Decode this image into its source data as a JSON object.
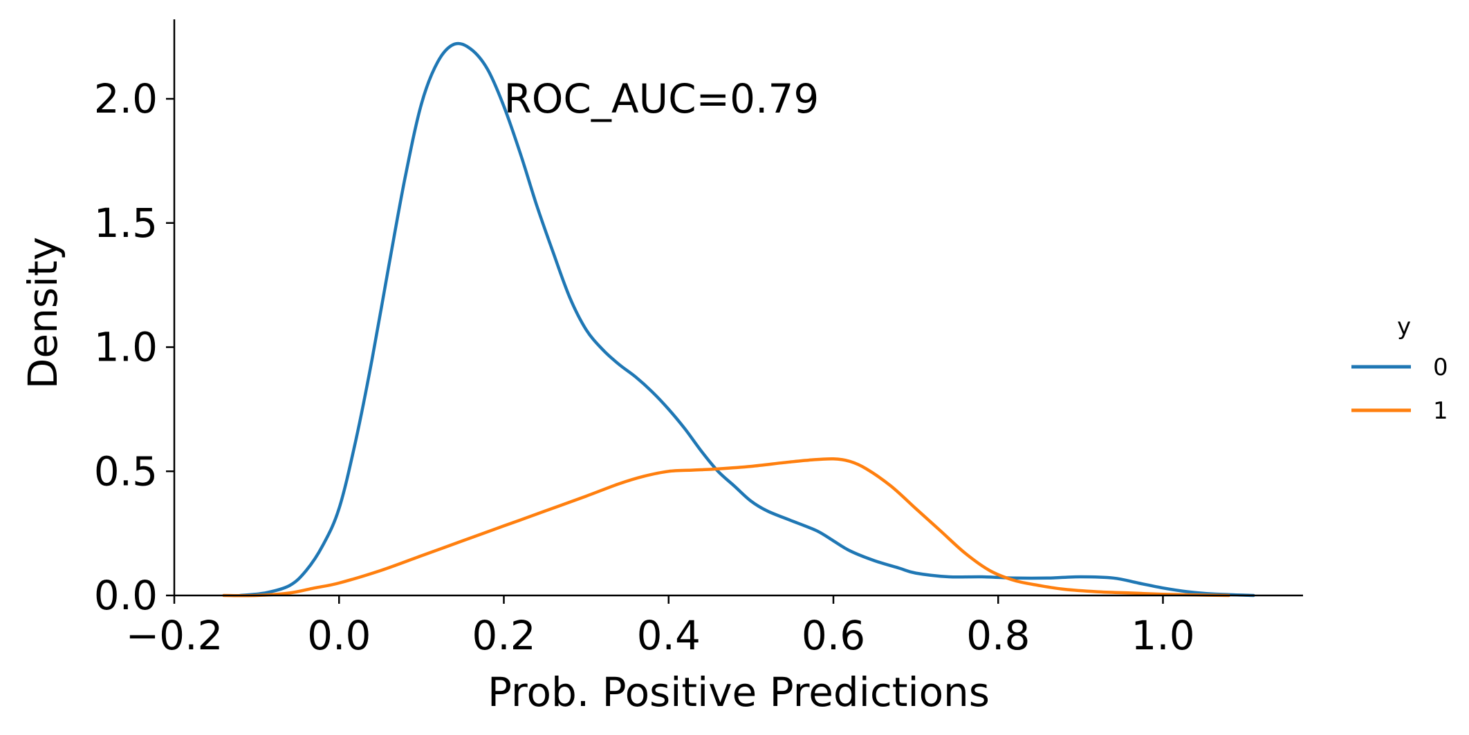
{
  "chart_data": {
    "type": "line",
    "title": "",
    "xlabel": "Prob. Positive Predictions",
    "ylabel": "Density",
    "xlim": [
      -0.2,
      1.17
    ],
    "ylim": [
      0,
      2.32
    ],
    "x_ticks": [
      -0.2,
      0.0,
      0.2,
      0.4,
      0.6,
      0.8,
      1.0
    ],
    "x_tick_labels": [
      "−0.2",
      "0.0",
      "0.2",
      "0.4",
      "0.6",
      "0.8",
      "1.0"
    ],
    "y_ticks": [
      0.0,
      0.5,
      1.0,
      1.5,
      2.0
    ],
    "y_tick_labels": [
      "0.0",
      "0.5",
      "1.0",
      "1.5",
      "2.0"
    ],
    "grid": false,
    "annotation": {
      "text": "ROC_AUC=0.79",
      "x": 0.2,
      "y": 2.0
    },
    "legend": {
      "title": "y",
      "placement": "center-right"
    },
    "series": [
      {
        "name": "0",
        "color": "#1f77b4",
        "x": [
          -0.12,
          -0.09,
          -0.06,
          -0.04,
          -0.02,
          0.0,
          0.02,
          0.04,
          0.06,
          0.08,
          0.1,
          0.12,
          0.14,
          0.16,
          0.18,
          0.2,
          0.22,
          0.24,
          0.26,
          0.28,
          0.3,
          0.32,
          0.34,
          0.36,
          0.38,
          0.4,
          0.42,
          0.44,
          0.46,
          0.48,
          0.5,
          0.52,
          0.55,
          0.58,
          0.6,
          0.62,
          0.65,
          0.68,
          0.7,
          0.74,
          0.78,
          0.82,
          0.86,
          0.9,
          0.94,
          0.97,
          1.0,
          1.03,
          1.06,
          1.11
        ],
        "y": [
          0.0,
          0.01,
          0.04,
          0.1,
          0.2,
          0.35,
          0.62,
          0.95,
          1.32,
          1.68,
          1.98,
          2.15,
          2.22,
          2.2,
          2.12,
          1.97,
          1.78,
          1.57,
          1.38,
          1.2,
          1.07,
          0.99,
          0.93,
          0.88,
          0.82,
          0.75,
          0.67,
          0.58,
          0.5,
          0.44,
          0.38,
          0.34,
          0.3,
          0.26,
          0.22,
          0.18,
          0.14,
          0.11,
          0.09,
          0.075,
          0.075,
          0.07,
          0.07,
          0.075,
          0.07,
          0.05,
          0.03,
          0.015,
          0.006,
          0.0
        ]
      },
      {
        "name": "1",
        "color": "#ff7f0e",
        "x": [
          -0.14,
          -0.1,
          -0.06,
          -0.03,
          0.0,
          0.05,
          0.1,
          0.15,
          0.2,
          0.25,
          0.3,
          0.34,
          0.37,
          0.4,
          0.43,
          0.46,
          0.5,
          0.54,
          0.57,
          0.6,
          0.62,
          0.64,
          0.67,
          0.7,
          0.73,
          0.76,
          0.79,
          0.82,
          0.85,
          0.88,
          0.92,
          0.96,
          1.0,
          1.04,
          1.08
        ],
        "y": [
          0.0,
          0.0,
          0.01,
          0.03,
          0.05,
          0.1,
          0.16,
          0.22,
          0.28,
          0.34,
          0.4,
          0.45,
          0.48,
          0.5,
          0.505,
          0.51,
          0.52,
          0.535,
          0.545,
          0.55,
          0.54,
          0.51,
          0.44,
          0.35,
          0.26,
          0.17,
          0.1,
          0.06,
          0.04,
          0.025,
          0.015,
          0.01,
          0.005,
          0.002,
          0.0
        ]
      }
    ]
  }
}
